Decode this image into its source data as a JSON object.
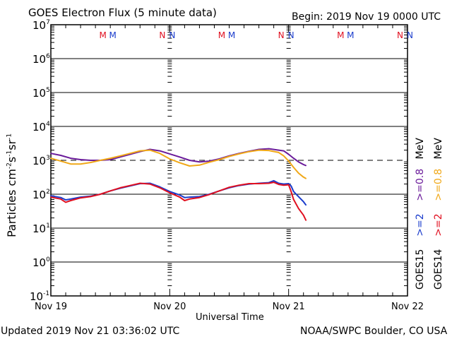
{
  "header": {
    "title": "GOES Electron Flux (5 minute data)",
    "begin": "Begin: 2019 Nov 19 0000 UTC"
  },
  "footer": {
    "updated": "Updated 2019 Nov 21 03:36:02 UTC",
    "credit": "NOAA/SWPC Boulder, CO USA"
  },
  "colors": {
    "g15_08": "#6a1b9a",
    "g14_08": "#f0a818",
    "g15_2": "#1a3ccc",
    "g14_2": "#e01020",
    "frame": "#000000"
  },
  "chart_data": {
    "type": "line",
    "title": "GOES Electron Flux (5 minute data)",
    "xlabel": "Universal Time",
    "ylabel": "Particles cm-2 s-1 sr-1",
    "yscale": "log",
    "ylim": [
      0.1,
      10000000
    ],
    "xlim_hours": [
      0,
      72
    ],
    "x_unit": "hours since 2019 Nov 19 0000 UTC",
    "x_ticks": [
      {
        "hour": 0,
        "label": "Nov 19"
      },
      {
        "hour": 24,
        "label": "Nov 20"
      },
      {
        "hour": 48,
        "label": "Nov 21"
      },
      {
        "hour": 72,
        "label": "Nov 22"
      }
    ],
    "y_ticks": [
      {
        "value": 10000000,
        "base": "10",
        "exp": "7"
      },
      {
        "value": 1000000,
        "base": "10",
        "exp": "6"
      },
      {
        "value": 100000,
        "base": "10",
        "exp": "5"
      },
      {
        "value": 10000,
        "base": "10",
        "exp": "4"
      },
      {
        "value": 1000,
        "base": "10",
        "exp": "3"
      },
      {
        "value": 100,
        "base": "10",
        "exp": "2"
      },
      {
        "value": 10,
        "base": "10",
        "exp": "1"
      },
      {
        "value": 1,
        "base": "10",
        "exp": "0"
      },
      {
        "value": 0.1,
        "base": "10",
        "exp": "-1"
      }
    ],
    "threshold_line": {
      "value": 1000,
      "style": "dashed"
    },
    "solid_gridlines": [
      1000000,
      100000,
      10000,
      100,
      10,
      1
    ],
    "mn_markers": [
      {
        "hour": 10.5,
        "label": "M",
        "color": "#e01020"
      },
      {
        "hour": 12.5,
        "label": "M",
        "color": "#1a3ccc"
      },
      {
        "hour": 22.5,
        "label": "N",
        "color": "#e01020"
      },
      {
        "hour": 24.5,
        "label": "N",
        "color": "#1a3ccc"
      },
      {
        "hour": 34.5,
        "label": "M",
        "color": "#e01020"
      },
      {
        "hour": 36.5,
        "label": "M",
        "color": "#1a3ccc"
      },
      {
        "hour": 46.5,
        "label": "N",
        "color": "#e01020"
      },
      {
        "hour": 48.5,
        "label": "N",
        "color": "#1a3ccc"
      },
      {
        "hour": 58.5,
        "label": "M",
        "color": "#e01020"
      },
      {
        "hour": 60.5,
        "label": "M",
        "color": "#1a3ccc"
      },
      {
        "hour": 70.5,
        "label": "N",
        "color": "#e01020"
      },
      {
        "hour": 72.5,
        "label": "N",
        "color": "#1a3ccc"
      }
    ],
    "legend": {
      "placement": "right",
      "columns": [
        {
          "satellite": "GOES15",
          "low": ">=2",
          "low_color": "#1a3ccc",
          "high": ">=0.8",
          "high_color": "#6a1b9a",
          "unit": "MeV"
        },
        {
          "satellite": "GOES14",
          "low": ">=2",
          "low_color": "#e01020",
          "high": ">=0.8",
          "high_color": "#f0a818",
          "unit": "MeV"
        }
      ]
    },
    "series": [
      {
        "name": "GOES15 >=0.8 MeV",
        "color": "#6a1b9a",
        "x": [
          0,
          2,
          4,
          6,
          8,
          10,
          12,
          14,
          16,
          18,
          20,
          22,
          24,
          26,
          28,
          30,
          32,
          34,
          36,
          38,
          40,
          42,
          44,
          46,
          47,
          48,
          49,
          50,
          51,
          51.5
        ],
        "y": [
          1600,
          1400,
          1150,
          1050,
          1000,
          1000,
          1050,
          1250,
          1500,
          1800,
          2100,
          1900,
          1550,
          1250,
          1000,
          900,
          950,
          1100,
          1350,
          1600,
          1850,
          2100,
          2200,
          2000,
          1900,
          1500,
          1150,
          900,
          750,
          700
        ]
      },
      {
        "name": "GOES14 >=0.8 MeV",
        "color": "#f0a818",
        "x": [
          0,
          2,
          4,
          6,
          8,
          10,
          12,
          14,
          16,
          18,
          20,
          22,
          24,
          26,
          28,
          30,
          32,
          34,
          36,
          38,
          40,
          42,
          44,
          46,
          47,
          48,
          49,
          50,
          51,
          51.5
        ],
        "y": [
          1150,
          950,
          780,
          780,
          860,
          1000,
          1150,
          1350,
          1600,
          1900,
          2000,
          1600,
          1100,
          850,
          680,
          720,
          880,
          1050,
          1300,
          1550,
          1800,
          2000,
          1950,
          1700,
          1350,
          950,
          620,
          420,
          320,
          290
        ]
      },
      {
        "name": "GOES15 >=2 MeV",
        "color": "#1a3ccc",
        "x": [
          0,
          2,
          3,
          4,
          6,
          8,
          10,
          12,
          14,
          16,
          18,
          20,
          22,
          24,
          26,
          27,
          28,
          30,
          32,
          34,
          36,
          38,
          40,
          42,
          44,
          45,
          46,
          47,
          48,
          48.5,
          49,
          50,
          51,
          51.5
        ],
        "y": [
          90,
          80,
          68,
          72,
          82,
          88,
          100,
          125,
          150,
          175,
          205,
          210,
          165,
          120,
          95,
          80,
          82,
          85,
          100,
          125,
          155,
          180,
          200,
          210,
          220,
          250,
          210,
          200,
          205,
          175,
          120,
          85,
          60,
          48
        ]
      },
      {
        "name": "GOES14 >=2 MeV",
        "color": "#e01020",
        "x": [
          0,
          2,
          3,
          4,
          6,
          8,
          10,
          12,
          14,
          16,
          18,
          20,
          22,
          24,
          26,
          27,
          28,
          30,
          32,
          34,
          36,
          38,
          40,
          42,
          44,
          45,
          46,
          47,
          48,
          48.5,
          49,
          50,
          51,
          51.5
        ],
        "y": [
          82,
          72,
          58,
          65,
          78,
          85,
          100,
          125,
          155,
          180,
          210,
          200,
          155,
          110,
          82,
          65,
          72,
          80,
          98,
          125,
          160,
          185,
          205,
          205,
          210,
          225,
          195,
          185,
          190,
          120,
          70,
          38,
          24,
          17
        ]
      }
    ]
  }
}
